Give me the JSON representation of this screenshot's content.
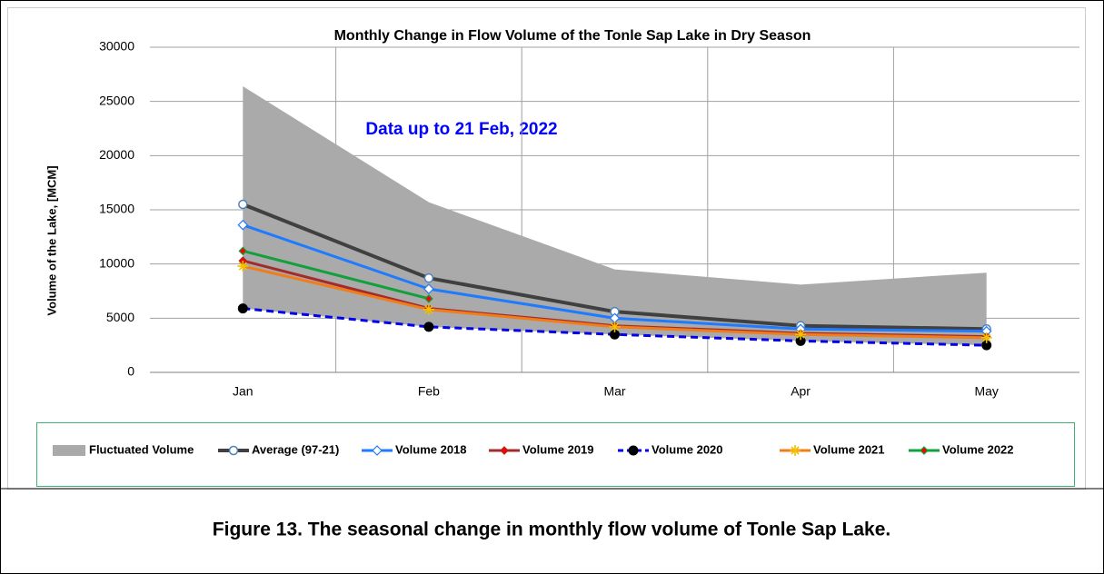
{
  "chart_data": {
    "type": "line",
    "title": "Monthly Change in Flow Volume of the Tonle Sap Lake in Dry Season",
    "y_label": "Volume of the Lake, [MCM]",
    "annotation": "Data up to 21 Feb, 2022",
    "categories": [
      "Jan",
      "Feb",
      "Mar",
      "Apr",
      "May"
    ],
    "ylim": [
      0,
      30000
    ],
    "yticks": [
      0,
      5000,
      10000,
      15000,
      20000,
      25000,
      30000
    ],
    "grid": true,
    "series": [
      {
        "name": "Fluctuated Volume",
        "kind": "area",
        "color": "#aaaaaa",
        "values": [
          26400,
          15700,
          9500,
          8100,
          9200
        ],
        "lower": [
          5900,
          4200,
          3500,
          2900,
          2500
        ]
      },
      {
        "name": "Average (97-21)",
        "color": "#404040",
        "marker": "circle",
        "values": [
          15500,
          8700,
          5600,
          4300,
          4000
        ]
      },
      {
        "name": "Volume 2018",
        "color": "#1e7bff",
        "marker": "diamond",
        "values": [
          13600,
          7700,
          5000,
          4000,
          3800
        ]
      },
      {
        "name": "Volume 2019",
        "color": "#a52a2a",
        "marker": "diamond",
        "values": [
          10300,
          5900,
          4300,
          3600,
          3300
        ]
      },
      {
        "name": "Volume 2020",
        "color": "#0000ee",
        "marker": "dot",
        "dashed": true,
        "values": [
          5900,
          4200,
          3500,
          2900,
          2500
        ]
      },
      {
        "name": "Volume 2021",
        "color": "#f07d1a",
        "marker": "star",
        "values": [
          9800,
          5800,
          4200,
          3500,
          3200
        ]
      },
      {
        "name": "Volume 2022",
        "color": "#11a03a",
        "marker": "diamond",
        "values": [
          11200,
          6800,
          null,
          null,
          null
        ]
      }
    ]
  },
  "caption": "Figure 13. The seasonal change in monthly flow volume of Tonle Sap Lake."
}
